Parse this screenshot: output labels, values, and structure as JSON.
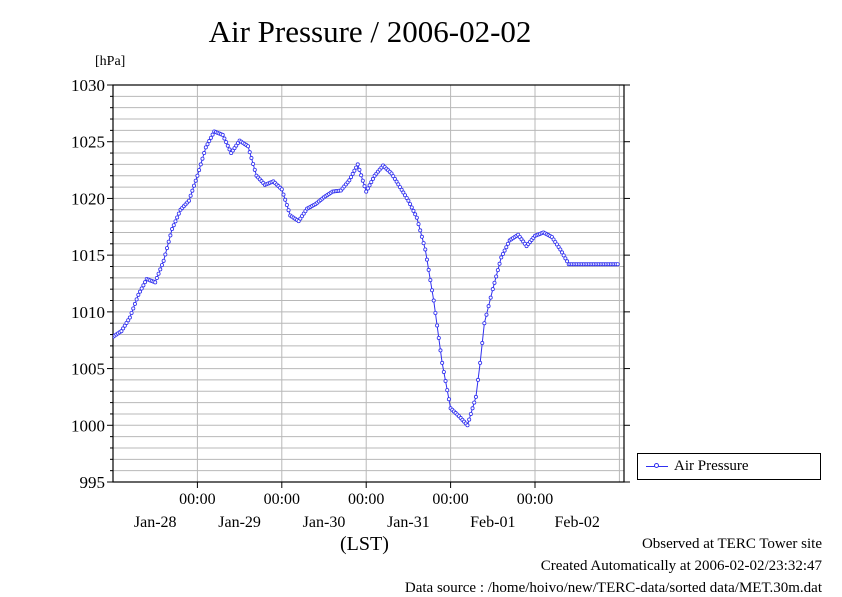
{
  "title": "Air Pressure / 2006-02-02",
  "unit_label": "[hPa]",
  "x_unit_label": "(LST)",
  "legend": {
    "label": "Air Pressure"
  },
  "footer": {
    "line1": "Observed at TERC Tower site",
    "line2": "Created Automatically at 2006-02-02/23:32:47",
    "line3": "Data source : /home/hoivo/new/TERC-data/sorted  data/MET.30m.dat"
  },
  "colors": {
    "series": "#3030f0",
    "grid": "#b8b8b8",
    "axis": "#000000"
  },
  "chart_data": {
    "type": "line",
    "title": "Air Pressure / 2006-02-02",
    "ylabel": "[hPa]",
    "xlabel": "(LST)",
    "ylim": [
      995,
      1030
    ],
    "yticks": [
      "1030",
      "1025",
      "1020",
      "1015",
      "1010",
      "1005",
      "1000",
      "995"
    ],
    "ytick_values": [
      1030,
      1025,
      1020,
      1015,
      1010,
      1005,
      1000,
      995
    ],
    "xlim_days_from_jan27": [
      0,
      6.1
    ],
    "xtick_top_labels": [
      "00:00",
      "00:00",
      "00:00",
      "00:00",
      "00:00"
    ],
    "xtick_dates": [
      "Jan-28",
      "Jan-29",
      "Jan-30",
      "Jan-31",
      "Feb-01",
      "Feb-02"
    ],
    "grid": true,
    "legend_position": "right-bottom",
    "series": [
      {
        "name": "Air Pressure",
        "x_days": [
          0.0,
          0.1,
          0.2,
          0.3,
          0.4,
          0.5,
          0.6,
          0.7,
          0.8,
          0.9,
          1.0,
          1.1,
          1.2,
          1.3,
          1.4,
          1.5,
          1.6,
          1.7,
          1.8,
          1.9,
          2.0,
          2.1,
          2.2,
          2.3,
          2.4,
          2.5,
          2.6,
          2.7,
          2.8,
          2.9,
          3.0,
          3.1,
          3.2,
          3.3,
          3.4,
          3.5,
          3.6,
          3.7,
          3.8,
          3.9,
          4.0,
          4.1,
          4.2,
          4.3,
          4.35,
          4.4,
          4.45,
          4.5,
          4.6,
          4.7,
          4.8,
          4.9,
          5.0,
          5.1,
          5.2,
          5.3,
          5.4,
          5.5,
          5.6,
          5.7,
          5.8,
          5.9,
          6.0,
          6.1
        ],
        "values": [
          1007.8,
          1008.3,
          1009.5,
          1011.5,
          1012.9,
          1012.6,
          1014.5,
          1017.3,
          1019.0,
          1019.8,
          1022.0,
          1024.5,
          1025.9,
          1025.6,
          1024.0,
          1025.1,
          1024.6,
          1022.0,
          1021.2,
          1021.5,
          1020.8,
          1018.5,
          1018.0,
          1019.1,
          1019.5,
          1020.1,
          1020.6,
          1020.7,
          1021.6,
          1023.0,
          1020.6,
          1022.0,
          1022.9,
          1022.2,
          1021.0,
          1019.8,
          1018.3,
          1015.5,
          1011.0,
          1005.5,
          1001.5,
          1000.8,
          1000.0,
          1002.5,
          1005.5,
          1009.0,
          1010.5,
          1012.0,
          1014.8,
          1016.3,
          1016.8,
          1015.8,
          1016.7,
          1017.0,
          1016.6,
          1015.5,
          1014.2,
          1014.2,
          1014.2,
          1014.2,
          1014.2,
          1014.2,
          1014.2,
          1014.2
        ]
      }
    ]
  }
}
